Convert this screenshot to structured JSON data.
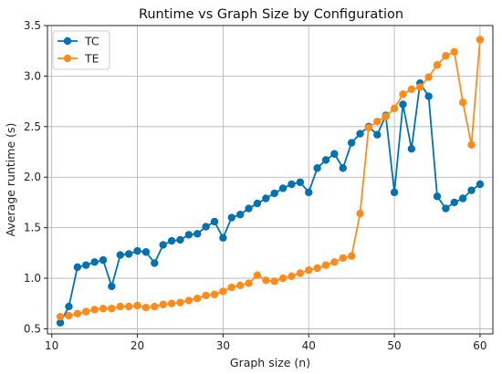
{
  "chart_data": {
    "type": "line",
    "title": "Runtime vs Graph Size by Configuration",
    "xlabel": "Graph size (n)",
    "ylabel": "Average runtime (s)",
    "xlim": [
      9.5,
      61.5
    ],
    "ylim": [
      0.45,
      3.5
    ],
    "xticks": [
      10,
      20,
      30,
      40,
      50,
      60
    ],
    "yticks": [
      0.5,
      1.0,
      1.5,
      2.0,
      2.5,
      3.0,
      3.5
    ],
    "xtick_labels": [
      "10",
      "20",
      "30",
      "40",
      "50",
      "60"
    ],
    "ytick_labels": [
      "0.5",
      "1.0",
      "1.5",
      "2.0",
      "2.5",
      "3.0",
      "3.5"
    ],
    "grid": true,
    "legend_position": "top-left",
    "x": [
      11,
      12,
      13,
      14,
      15,
      16,
      17,
      18,
      19,
      20,
      21,
      22,
      23,
      24,
      25,
      26,
      27,
      28,
      29,
      30,
      31,
      32,
      33,
      34,
      35,
      36,
      37,
      38,
      39,
      40,
      41,
      42,
      43,
      44,
      45,
      46,
      47,
      48,
      49,
      50,
      51,
      52,
      53,
      54,
      55,
      56,
      57,
      58,
      59,
      60
    ],
    "series": [
      {
        "name": "TC",
        "color": "#0072B2",
        "values": [
          0.56,
          0.72,
          1.11,
          1.13,
          1.16,
          1.18,
          0.92,
          1.23,
          1.24,
          1.27,
          1.26,
          1.15,
          1.33,
          1.37,
          1.38,
          1.43,
          1.44,
          1.51,
          1.56,
          1.4,
          1.6,
          1.63,
          1.69,
          1.74,
          1.79,
          1.84,
          1.89,
          1.93,
          1.95,
          1.85,
          2.09,
          2.17,
          2.23,
          2.09,
          2.34,
          2.43,
          2.5,
          2.42,
          2.61,
          1.85,
          2.72,
          2.28,
          2.93,
          2.8,
          1.81,
          1.69,
          1.75,
          1.79,
          1.87,
          1.93
        ]
      },
      {
        "name": "TE",
        "color": "#FF8C1A",
        "values": [
          0.62,
          0.63,
          0.65,
          0.67,
          0.69,
          0.7,
          0.7,
          0.72,
          0.72,
          0.73,
          0.71,
          0.72,
          0.74,
          0.75,
          0.76,
          0.78,
          0.8,
          0.83,
          0.84,
          0.87,
          0.91,
          0.93,
          0.95,
          1.03,
          0.98,
          0.97,
          1.0,
          1.02,
          1.05,
          1.08,
          1.1,
          1.13,
          1.16,
          1.2,
          1.22,
          1.64,
          2.49,
          2.55,
          2.6,
          2.68,
          2.82,
          2.87,
          2.89,
          2.99,
          3.11,
          3.2,
          3.24,
          2.74,
          2.32,
          3.36
        ]
      }
    ]
  }
}
